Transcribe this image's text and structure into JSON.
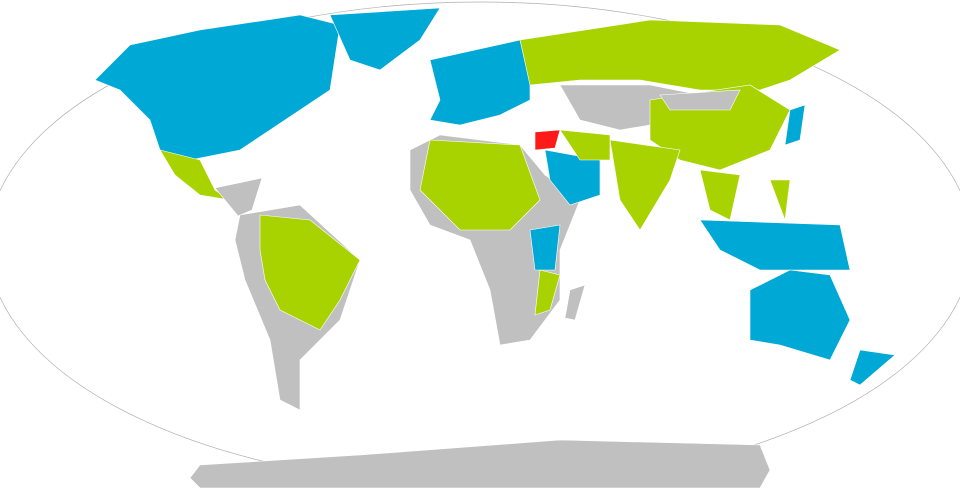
{
  "map": {
    "projection": "Robinson",
    "colors": {
      "blue": "#00a8d6",
      "green": "#a9d300",
      "gray": "#c0c0c0",
      "red": "#ff1a1a",
      "outline": "#b0b0b0"
    }
  }
}
